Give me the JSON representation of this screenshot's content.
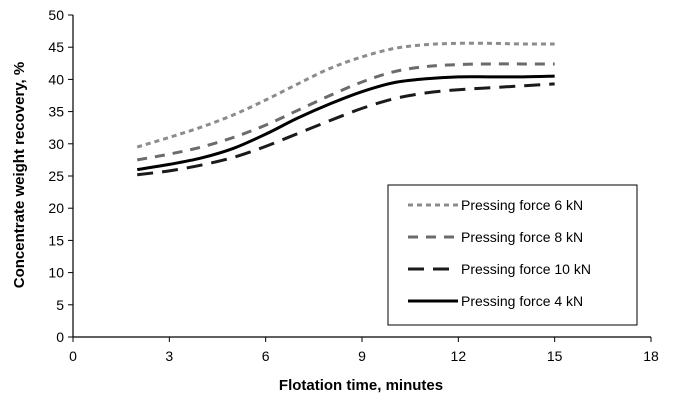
{
  "chart_data": {
    "type": "line",
    "title": "",
    "xlabel": "Flotation time, minutes",
    "ylabel": "Concentrate weight recovery, %",
    "xlim": [
      0,
      18
    ],
    "ylim": [
      0,
      50
    ],
    "xticks": [
      0,
      3,
      6,
      9,
      12,
      15,
      18
    ],
    "yticks": [
      0,
      5,
      10,
      15,
      20,
      25,
      30,
      35,
      40,
      45,
      50
    ],
    "grid": false,
    "legend_position": "bottom-right",
    "series": [
      {
        "name": "Pressing force 6 kN",
        "color": "#8c8c8c",
        "dash": "short-dash",
        "x": [
          2,
          3,
          4,
          5,
          6,
          7,
          8,
          9,
          10,
          11,
          12,
          13,
          14,
          15
        ],
        "y": [
          29.5,
          31.0,
          32.6,
          34.5,
          36.8,
          39.3,
          41.7,
          43.5,
          44.8,
          45.4,
          45.6,
          45.6,
          45.5,
          45.5
        ]
      },
      {
        "name": "Pressing force 8 kN",
        "color": "#6b6b6b",
        "dash": "medium-dash",
        "x": [
          2,
          3,
          4,
          5,
          6,
          7,
          8,
          9,
          10,
          11,
          12,
          13,
          14,
          15
        ],
        "y": [
          27.5,
          28.4,
          29.5,
          31.0,
          32.9,
          35.2,
          37.5,
          39.6,
          41.2,
          42.0,
          42.3,
          42.4,
          42.4,
          42.4
        ]
      },
      {
        "name": "Pressing force 10 kN",
        "color": "#1a1a1a",
        "dash": "long-dash",
        "x": [
          2,
          3,
          4,
          5,
          6,
          7,
          8,
          9,
          10,
          11,
          12,
          13,
          14,
          15
        ],
        "y": [
          25.2,
          25.8,
          26.7,
          27.9,
          29.6,
          31.6,
          33.6,
          35.5,
          37.0,
          37.9,
          38.4,
          38.7,
          39.0,
          39.3
        ]
      },
      {
        "name": "Pressing force 4 kN",
        "color": "#000000",
        "dash": "solid",
        "x": [
          2,
          3,
          4,
          5,
          6,
          7,
          8,
          9,
          10,
          11,
          12,
          13,
          14,
          15
        ],
        "y": [
          26.0,
          26.8,
          27.8,
          29.3,
          31.5,
          34.0,
          36.2,
          38.1,
          39.5,
          40.1,
          40.4,
          40.4,
          40.4,
          40.5
        ]
      }
    ]
  }
}
